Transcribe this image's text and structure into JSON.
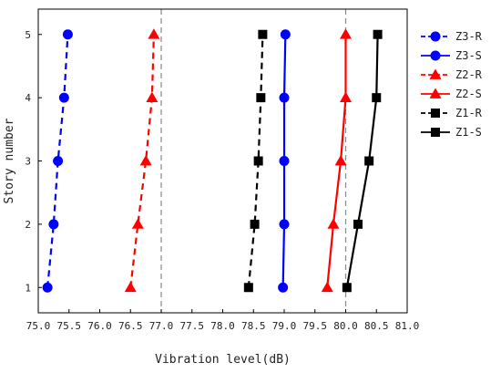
{
  "chart_data": {
    "type": "line",
    "xlabel": "Vibration level(dB)",
    "ylabel": "Story number",
    "xlim": [
      75.0,
      81.0
    ],
    "ylim": [
      0.6,
      5.4
    ],
    "x_ticks": [
      "75.0",
      "75.5",
      "76.0",
      "76.5",
      "77.0",
      "77.5",
      "78.0",
      "78.5",
      "79.0",
      "79.5",
      "80.0",
      "80.5",
      "81.0"
    ],
    "y_ticks": [
      "1",
      "2",
      "3",
      "4",
      "5"
    ],
    "reference_lines_x": [
      77.0,
      80.0
    ],
    "grid": false,
    "legend_position": "right, outside",
    "series": [
      {
        "name": "Z3-R",
        "color": "#0000ff",
        "line": "dashed",
        "marker": "circle",
        "points": [
          [
            75.15,
            1
          ],
          [
            75.25,
            2
          ],
          [
            75.32,
            3
          ],
          [
            75.42,
            4
          ],
          [
            75.48,
            5
          ]
        ]
      },
      {
        "name": "Z3-S",
        "color": "#0000ff",
        "line": "solid",
        "marker": "circle",
        "points": [
          [
            78.98,
            1
          ],
          [
            79.0,
            2
          ],
          [
            79.0,
            3
          ],
          [
            79.0,
            4
          ],
          [
            79.02,
            5
          ]
        ]
      },
      {
        "name": "Z2-R",
        "color": "#ff0000",
        "line": "dashed",
        "marker": "triangle",
        "points": [
          [
            76.5,
            1
          ],
          [
            76.62,
            2
          ],
          [
            76.75,
            3
          ],
          [
            76.85,
            4
          ],
          [
            76.88,
            5
          ]
        ]
      },
      {
        "name": "Z2-S",
        "color": "#ff0000",
        "line": "solid",
        "marker": "triangle",
        "points": [
          [
            79.7,
            1
          ],
          [
            79.8,
            2
          ],
          [
            79.92,
            3
          ],
          [
            80.0,
            4
          ],
          [
            80.0,
            5
          ]
        ]
      },
      {
        "name": "Z1-R",
        "color": "#000000",
        "line": "dashed",
        "marker": "square",
        "points": [
          [
            78.42,
            1
          ],
          [
            78.52,
            2
          ],
          [
            78.58,
            3
          ],
          [
            78.62,
            4
          ],
          [
            78.65,
            5
          ]
        ]
      },
      {
        "name": "Z1-S",
        "color": "#000000",
        "line": "solid",
        "marker": "square",
        "points": [
          [
            80.02,
            1
          ],
          [
            80.2,
            2
          ],
          [
            80.38,
            3
          ],
          [
            80.5,
            4
          ],
          [
            80.52,
            5
          ]
        ]
      }
    ]
  }
}
